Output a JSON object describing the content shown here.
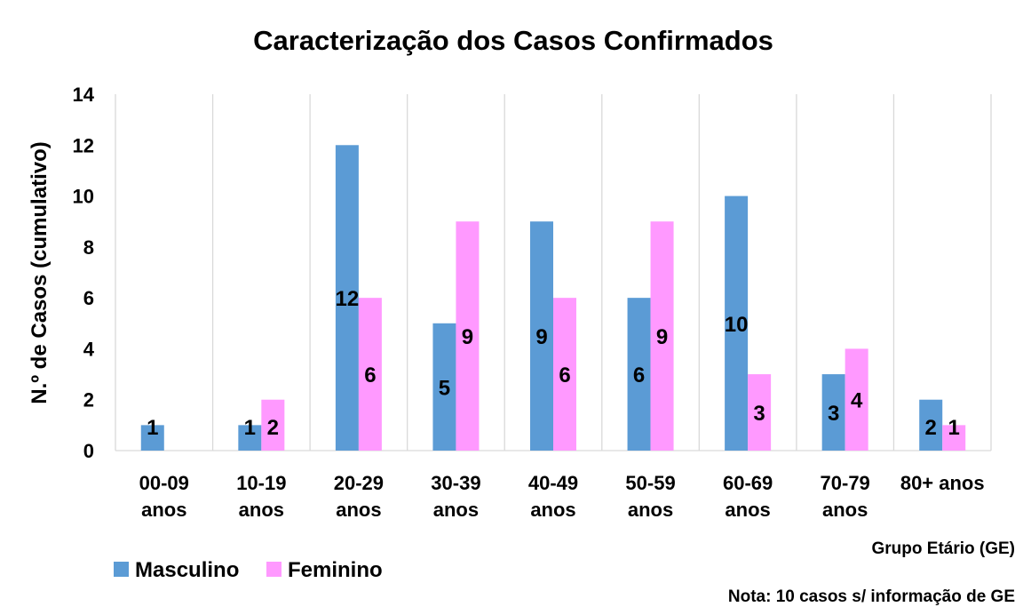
{
  "chart_data": {
    "type": "bar",
    "title": "Caracterização dos Casos Confirmados",
    "ylabel": "N.º de Casos (cumulativo)",
    "xlabel": "Grupo Etário (GE)",
    "note": "Nota: 10 casos s/ informação de GE",
    "ylim": [
      0,
      14
    ],
    "yticks": [
      0,
      2,
      4,
      6,
      8,
      10,
      12,
      14
    ],
    "grid": "vertical category separators",
    "legend_position": "bottom-left",
    "categories": [
      [
        "00-09",
        "anos"
      ],
      [
        "10-19",
        "anos"
      ],
      [
        "20-29",
        "anos"
      ],
      [
        "30-39",
        "anos"
      ],
      [
        "40-49",
        "anos"
      ],
      [
        "50-59",
        "anos"
      ],
      [
        "60-69",
        "anos"
      ],
      [
        "70-79",
        "anos"
      ],
      [
        "80+ anos"
      ]
    ],
    "series": [
      {
        "name": "Masculino",
        "color": "#5b9bd5",
        "values": [
          1,
          1,
          12,
          5,
          9,
          6,
          10,
          3,
          2
        ]
      },
      {
        "name": "Feminino",
        "color": "#ff99ff",
        "values": [
          null,
          2,
          6,
          9,
          6,
          9,
          3,
          4,
          1
        ]
      }
    ]
  }
}
